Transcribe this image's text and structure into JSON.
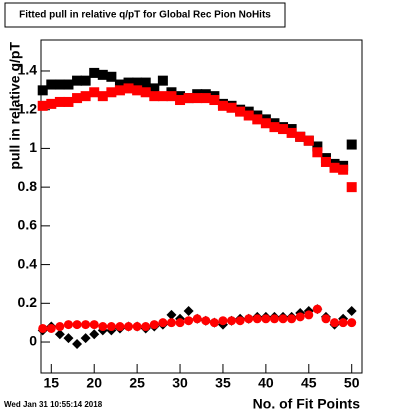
{
  "chart_data": {
    "type": "scatter",
    "title": "Fitted pull in relative q/pT for Global Rec Pion NoHits",
    "x_label": "No. of Fit Points",
    "y_label": "pull in relative q/pT",
    "timestamp": "Wed Jan 31 10:55:14 2018",
    "x": [
      14,
      15,
      16,
      17,
      18,
      19,
      20,
      21,
      22,
      23,
      24,
      25,
      26,
      27,
      28,
      29,
      30,
      31,
      32,
      33,
      34,
      35,
      36,
      37,
      38,
      39,
      40,
      41,
      42,
      43,
      44,
      45,
      46,
      47,
      48,
      49,
      50
    ],
    "series": [
      {
        "color": "#000000",
        "marker": "square",
        "values": [
          1.3,
          1.33,
          1.33,
          1.33,
          1.35,
          1.35,
          1.39,
          1.38,
          1.37,
          1.33,
          1.34,
          1.34,
          1.34,
          1.31,
          1.35,
          1.29,
          1.27,
          1.26,
          1.28,
          1.28,
          1.27,
          1.23,
          1.22,
          1.2,
          1.19,
          1.17,
          1.15,
          1.13,
          1.11,
          1.1,
          1.06,
          1.04,
          1.01,
          0.95,
          0.92,
          0.91,
          1.02
        ]
      },
      {
        "color": "#ff0000",
        "marker": "square",
        "values": [
          1.22,
          1.23,
          1.24,
          1.24,
          1.26,
          1.27,
          1.29,
          1.27,
          1.29,
          1.3,
          1.31,
          1.3,
          1.29,
          1.27,
          1.27,
          1.27,
          1.25,
          1.26,
          1.26,
          1.26,
          1.25,
          1.22,
          1.21,
          1.19,
          1.17,
          1.15,
          1.13,
          1.11,
          1.1,
          1.08,
          1.06,
          1.04,
          0.98,
          0.93,
          0.9,
          0.89,
          0.8
        ]
      },
      {
        "color": "#000000",
        "marker": "diamond",
        "values": [
          0.06,
          0.08,
          0.04,
          0.02,
          -0.01,
          0.02,
          0.04,
          0.06,
          0.06,
          0.07,
          0.08,
          0.08,
          0.07,
          0.08,
          0.09,
          0.14,
          0.12,
          0.16,
          0.12,
          0.11,
          0.1,
          0.09,
          0.11,
          0.12,
          0.12,
          0.13,
          0.13,
          0.13,
          0.13,
          0.13,
          0.15,
          0.16,
          0.17,
          0.13,
          0.09,
          0.12,
          0.16
        ]
      },
      {
        "color": "#ff0000",
        "marker": "circle",
        "values": [
          0.07,
          0.07,
          0.08,
          0.09,
          0.09,
          0.09,
          0.09,
          0.08,
          0.08,
          0.08,
          0.08,
          0.08,
          0.08,
          0.09,
          0.1,
          0.1,
          0.1,
          0.11,
          0.12,
          0.11,
          0.1,
          0.11,
          0.11,
          0.11,
          0.12,
          0.12,
          0.12,
          0.12,
          0.12,
          0.12,
          0.13,
          0.14,
          0.17,
          0.12,
          0.1,
          0.1,
          0.1
        ]
      }
    ],
    "xlim": [
      13.8,
      51.2
    ],
    "ylim": [
      -0.16,
      1.56
    ],
    "xticks": [
      15,
      20,
      25,
      30,
      35,
      40,
      45,
      50
    ],
    "yticks": [
      0,
      0.2,
      0.4,
      0.6,
      0.8,
      1,
      1.2,
      1.4
    ]
  }
}
